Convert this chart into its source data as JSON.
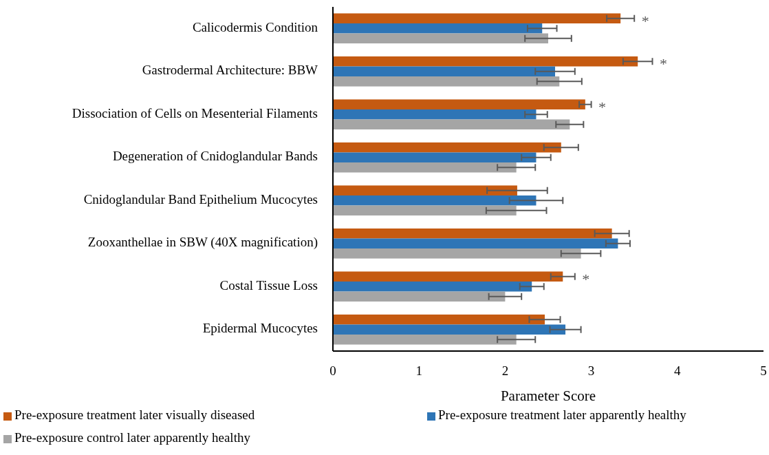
{
  "chart_data": {
    "type": "bar",
    "orientation": "horizontal",
    "xlabel": "Parameter Score",
    "categories": [
      "Calicodermis Condition",
      "Gastrodermal Architecture: BBW",
      "Dissociation of Cells on Mesenterial Filaments",
      "Degeneration of Cnidoglandular Bands",
      "Cnidoglandular Band Epithelium Mucocytes",
      "Zooxanthellae in SBW (40X magnification)",
      "Costal Tissue Loss",
      "Epidermal Mucocytes"
    ],
    "series": [
      {
        "name": "Pre-exposure treatment later visually diseased",
        "color": "#c55a11",
        "values": [
          3.34,
          3.54,
          2.93,
          2.65,
          2.14,
          3.24,
          2.67,
          2.46
        ],
        "value_labels": [
          "*",
          "*",
          "*",
          null,
          null,
          null,
          "*",
          null
        ],
        "errors": [
          0.16,
          0.17,
          0.07,
          0.2,
          0.35,
          0.2,
          0.14,
          0.18
        ]
      },
      {
        "name": "Pre-exposure treatment later apparently healthy",
        "color": "#2e75b6",
        "values": [
          2.43,
          2.58,
          2.36,
          2.36,
          2.36,
          3.31,
          2.31,
          2.7
        ],
        "errors": [
          0.17,
          0.23,
          0.13,
          0.17,
          0.31,
          0.14,
          0.14,
          0.18
        ]
      },
      {
        "name": "Pre-exposure control later apparently healthy",
        "color": "#a5a5a5",
        "values": [
          2.5,
          2.63,
          2.75,
          2.13,
          2.13,
          2.88,
          2.0,
          2.13
        ],
        "errors": [
          0.27,
          0.26,
          0.16,
          0.22,
          0.35,
          0.23,
          0.19,
          0.22
        ]
      }
    ],
    "xlim": [
      0,
      5
    ],
    "xticks": [
      0,
      1,
      2,
      3,
      4,
      5
    ],
    "grid": false,
    "legend": "bottom"
  }
}
